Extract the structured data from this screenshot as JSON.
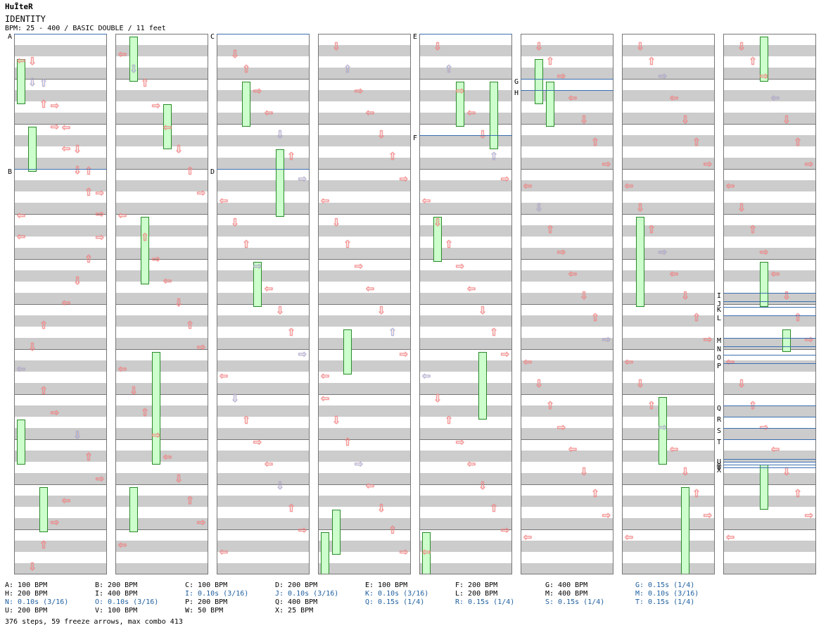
{
  "header": {
    "logo": "HuĨteR",
    "song_title": "IDENTITY",
    "chart_info": "BPM: 25 - 400 / BASIC DOUBLE / 11 feet"
  },
  "colors": {
    "tap_red": "#ff9999",
    "tap_blue": "#99ccff",
    "freeze_fill": "#ccffcc",
    "freeze_arrow_green": "#33cc33",
    "freeze_arrow_yellow": "#ffff66",
    "bpm_line": "#3b6fb0"
  },
  "icons": [
    "left-arrow-icon",
    "down-arrow-icon",
    "up-arrow-icon",
    "right-arrow-icon",
    "freeze-arrow-icon"
  ],
  "columns": [
    {
      "markers": [
        {
          "label": "A"
        },
        {
          "label": "B"
        }
      ],
      "notes": [
        [
          1,
          12,
          "red"
        ],
        [
          2,
          24,
          "blue"
        ],
        [
          3,
          36,
          "red"
        ],
        [
          4,
          48,
          "red"
        ],
        [
          5,
          60,
          "red"
        ],
        [
          6,
          72,
          "red"
        ],
        [
          7,
          84,
          "red"
        ],
        [
          8,
          96,
          "red"
        ],
        [
          7,
          108,
          "red"
        ],
        [
          6,
          120,
          "red"
        ],
        [
          5,
          132,
          "red"
        ],
        [
          4,
          144,
          "red"
        ],
        [
          2,
          156,
          "red"
        ],
        [
          1,
          168,
          "red"
        ],
        [
          0,
          180,
          "blue"
        ],
        [
          2,
          192,
          "red"
        ],
        [
          3,
          204,
          "red"
        ],
        [
          5,
          216,
          "blue"
        ],
        [
          6,
          228,
          "red"
        ],
        [
          7,
          240,
          "red"
        ],
        [
          4,
          252,
          "red"
        ],
        [
          3,
          264,
          "red"
        ],
        [
          2,
          276,
          "red"
        ],
        [
          1,
          288,
          "red"
        ],
        [
          0,
          300,
          "red"
        ],
        [
          1,
          312,
          "blue"
        ],
        [
          2,
          324,
          "red"
        ],
        [
          3,
          336,
          "red"
        ],
        [
          4,
          348,
          "red"
        ],
        [
          5,
          360,
          "red"
        ],
        [
          6,
          372,
          "red"
        ],
        [
          7,
          384,
          "red"
        ],
        [
          8,
          396,
          "red"
        ]
      ],
      "freezes": [
        [
          0,
          1,
          3
        ],
        [
          0,
          17,
          19
        ],
        [
          1,
          4,
          6
        ],
        [
          2,
          20,
          22
        ]
      ]
    },
    {
      "markers": [],
      "notes": [
        [
          0,
          8,
          "red"
        ],
        [
          1,
          16,
          "blue"
        ],
        [
          2,
          24,
          "red"
        ],
        [
          3,
          36,
          "red"
        ],
        [
          4,
          48,
          "red"
        ],
        [
          5,
          60,
          "red"
        ],
        [
          6,
          72,
          "red"
        ],
        [
          7,
          84,
          "red"
        ],
        [
          0,
          96,
          "red"
        ],
        [
          2,
          108,
          "red"
        ],
        [
          3,
          120,
          "red"
        ],
        [
          4,
          132,
          "red"
        ],
        [
          5,
          144,
          "red"
        ],
        [
          6,
          156,
          "red"
        ],
        [
          7,
          168,
          "red"
        ],
        [
          0,
          180,
          "red"
        ],
        [
          1,
          192,
          "red"
        ],
        [
          2,
          204,
          "red"
        ],
        [
          3,
          216,
          "red"
        ],
        [
          4,
          228,
          "red"
        ],
        [
          5,
          240,
          "red"
        ],
        [
          6,
          252,
          "red"
        ],
        [
          7,
          264,
          "red"
        ],
        [
          8,
          276,
          "red"
        ]
      ],
      "freezes": [
        [
          1,
          0,
          2
        ],
        [
          2,
          8,
          11
        ],
        [
          3,
          14,
          19
        ],
        [
          4,
          3,
          5
        ],
        [
          1,
          20,
          22
        ]
      ]
    },
    {
      "markers": [
        {
          "label": "C"
        },
        {
          "label": "D"
        }
      ],
      "notes": [
        [
          1,
          8,
          "red"
        ],
        [
          2,
          16,
          "red"
        ],
        [
          3,
          28,
          "red"
        ],
        [
          4,
          40,
          "red"
        ],
        [
          5,
          52,
          "blue"
        ],
        [
          6,
          64,
          "red"
        ],
        [
          7,
          76,
          "blue"
        ],
        [
          0,
          88,
          "red"
        ],
        [
          1,
          100,
          "red"
        ],
        [
          2,
          112,
          "red"
        ],
        [
          3,
          124,
          "blue"
        ],
        [
          4,
          136,
          "red"
        ],
        [
          5,
          148,
          "red"
        ],
        [
          6,
          160,
          "red"
        ],
        [
          7,
          172,
          "blue"
        ],
        [
          0,
          184,
          "red"
        ],
        [
          1,
          196,
          "blue"
        ],
        [
          2,
          208,
          "red"
        ],
        [
          3,
          220,
          "red"
        ],
        [
          4,
          232,
          "red"
        ],
        [
          5,
          244,
          "blue"
        ],
        [
          6,
          256,
          "red"
        ],
        [
          7,
          268,
          "red"
        ],
        [
          8,
          280,
          "red"
        ]
      ],
      "freezes": [
        [
          2,
          2,
          4
        ],
        [
          5,
          5,
          8
        ],
        [
          3,
          10,
          12
        ]
      ]
    },
    {
      "markers": [],
      "notes": [
        [
          1,
          4,
          "red"
        ],
        [
          2,
          16,
          "blue"
        ],
        [
          3,
          28,
          "red"
        ],
        [
          4,
          40,
          "red"
        ],
        [
          5,
          52,
          "red"
        ],
        [
          6,
          64,
          "red"
        ],
        [
          7,
          76,
          "red"
        ],
        [
          0,
          88,
          "red"
        ],
        [
          1,
          100,
          "red"
        ],
        [
          2,
          112,
          "red"
        ],
        [
          3,
          124,
          "red"
        ],
        [
          4,
          136,
          "red"
        ],
        [
          5,
          148,
          "red"
        ],
        [
          6,
          160,
          "blue"
        ],
        [
          7,
          172,
          "red"
        ],
        [
          8,
          184,
          "red"
        ],
        [
          0,
          196,
          "red"
        ],
        [
          1,
          208,
          "red"
        ],
        [
          2,
          220,
          "red"
        ],
        [
          3,
          232,
          "blue"
        ],
        [
          4,
          244,
          "red"
        ],
        [
          5,
          256,
          "red"
        ],
        [
          6,
          268,
          "red"
        ],
        [
          7,
          280,
          "red"
        ]
      ],
      "freezes": [
        [
          2,
          13,
          15
        ],
        [
          1,
          21,
          23
        ],
        [
          0,
          22,
          24
        ]
      ]
    },
    {
      "markers": [
        {
          "label": "E"
        },
        {
          "label": "F"
        }
      ],
      "notes": [
        [
          1,
          4,
          "red"
        ],
        [
          2,
          16,
          "blue"
        ],
        [
          3,
          28,
          "red"
        ],
        [
          4,
          40,
          "red"
        ],
        [
          5,
          52,
          "red"
        ],
        [
          6,
          64,
          "blue"
        ],
        [
          7,
          76,
          "red"
        ],
        [
          0,
          88,
          "red"
        ],
        [
          1,
          100,
          "red"
        ],
        [
          2,
          112,
          "red"
        ],
        [
          3,
          124,
          "red"
        ],
        [
          4,
          136,
          "red"
        ],
        [
          5,
          148,
          "red"
        ],
        [
          6,
          160,
          "red"
        ],
        [
          7,
          172,
          "red"
        ],
        [
          0,
          184,
          "blue"
        ],
        [
          1,
          196,
          "red"
        ],
        [
          2,
          208,
          "red"
        ],
        [
          3,
          220,
          "red"
        ],
        [
          4,
          232,
          "red"
        ],
        [
          5,
          244,
          "red"
        ],
        [
          6,
          256,
          "red"
        ],
        [
          7,
          268,
          "red"
        ],
        [
          8,
          280,
          "red"
        ]
      ],
      "freezes": [
        [
          3,
          2,
          4
        ],
        [
          6,
          2,
          5
        ],
        [
          1,
          8,
          10
        ],
        [
          5,
          14,
          17
        ],
        [
          0,
          22,
          24
        ]
      ]
    },
    {
      "markers": [
        {
          "label": "G"
        },
        {
          "label": "H"
        }
      ],
      "notes": [
        [
          1,
          4,
          "red"
        ],
        [
          2,
          12,
          "red"
        ],
        [
          3,
          20,
          "red"
        ],
        [
          4,
          32,
          "red"
        ],
        [
          5,
          44,
          "red"
        ],
        [
          6,
          56,
          "red"
        ],
        [
          7,
          68,
          "red"
        ],
        [
          0,
          80,
          "red"
        ],
        [
          1,
          92,
          "blue"
        ],
        [
          2,
          104,
          "red"
        ],
        [
          3,
          116,
          "red"
        ],
        [
          4,
          128,
          "red"
        ],
        [
          5,
          140,
          "red"
        ],
        [
          6,
          152,
          "red"
        ],
        [
          7,
          164,
          "blue"
        ],
        [
          0,
          176,
          "red"
        ],
        [
          1,
          188,
          "red"
        ],
        [
          2,
          200,
          "red"
        ],
        [
          3,
          212,
          "red"
        ],
        [
          4,
          224,
          "red"
        ],
        [
          5,
          236,
          "red"
        ],
        [
          6,
          248,
          "red"
        ],
        [
          7,
          260,
          "red"
        ],
        [
          8,
          272,
          "red"
        ]
      ],
      "freezes": [
        [
          1,
          1,
          3
        ],
        [
          2,
          2,
          4
        ]
      ]
    },
    {
      "markers": [],
      "notes": [
        [
          1,
          4,
          "red"
        ],
        [
          2,
          12,
          "red"
        ],
        [
          3,
          20,
          "blue"
        ],
        [
          4,
          32,
          "red"
        ],
        [
          5,
          44,
          "red"
        ],
        [
          6,
          56,
          "red"
        ],
        [
          7,
          68,
          "red"
        ],
        [
          0,
          80,
          "red"
        ],
        [
          1,
          92,
          "red"
        ],
        [
          2,
          104,
          "red"
        ],
        [
          3,
          116,
          "blue"
        ],
        [
          4,
          128,
          "red"
        ],
        [
          5,
          140,
          "red"
        ],
        [
          6,
          152,
          "red"
        ],
        [
          7,
          164,
          "red"
        ],
        [
          0,
          176,
          "red"
        ],
        [
          1,
          188,
          "red"
        ],
        [
          2,
          200,
          "red"
        ],
        [
          3,
          212,
          "blue"
        ],
        [
          4,
          224,
          "red"
        ],
        [
          5,
          236,
          "red"
        ],
        [
          6,
          248,
          "red"
        ],
        [
          7,
          260,
          "red"
        ],
        [
          8,
          272,
          "red"
        ]
      ],
      "freezes": [
        [
          1,
          8,
          12
        ],
        [
          3,
          16,
          19
        ],
        [
          5,
          20,
          24
        ]
      ]
    },
    {
      "markers": [
        {
          "label": "I"
        },
        {
          "label": "J"
        },
        {
          "label": "K"
        },
        {
          "label": "L"
        },
        {
          "label": "M"
        },
        {
          "label": "N"
        },
        {
          "label": "O"
        },
        {
          "label": "P"
        },
        {
          "label": "Q"
        },
        {
          "label": "R"
        },
        {
          "label": "S"
        },
        {
          "label": "T"
        },
        {
          "label": "U"
        },
        {
          "label": "V"
        },
        {
          "label": "W"
        },
        {
          "label": "X"
        }
      ],
      "notes": [
        [
          1,
          4,
          "red"
        ],
        [
          2,
          12,
          "red"
        ],
        [
          3,
          20,
          "red"
        ],
        [
          4,
          32,
          "blue"
        ],
        [
          5,
          44,
          "red"
        ],
        [
          6,
          56,
          "red"
        ],
        [
          7,
          68,
          "red"
        ],
        [
          0,
          80,
          "red"
        ],
        [
          1,
          92,
          "red"
        ],
        [
          2,
          104,
          "red"
        ],
        [
          3,
          116,
          "red"
        ],
        [
          4,
          128,
          "red"
        ],
        [
          5,
          140,
          "red"
        ],
        [
          6,
          152,
          "red"
        ],
        [
          7,
          164,
          "red"
        ],
        [
          0,
          176,
          "red"
        ],
        [
          1,
          188,
          "red"
        ],
        [
          2,
          200,
          "red"
        ],
        [
          3,
          212,
          "red"
        ],
        [
          4,
          224,
          "red"
        ],
        [
          5,
          236,
          "red"
        ],
        [
          6,
          248,
          "red"
        ],
        [
          7,
          260,
          "red"
        ],
        [
          8,
          272,
          "red"
        ]
      ],
      "freezes": [
        [
          3,
          0,
          2
        ],
        [
          3,
          10,
          12
        ],
        [
          5,
          13,
          14
        ],
        [
          3,
          19,
          21
        ]
      ]
    }
  ],
  "legend": [
    [
      "A: 100 BPM",
      "B: 200 BPM",
      "C: 100 BPM",
      "D: 200 BPM",
      "E: 100 BPM",
      "F: 200 BPM",
      "G: 400 BPM",
      "G: 0.15s (1/4)"
    ],
    [
      "H: 200 BPM",
      "I: 400 BPM",
      "I: 0.10s (3/16)",
      "J: 0.10s (3/16)",
      "K: 0.10s (3/16)",
      "L: 200 BPM",
      "M: 400 BPM",
      "M: 0.10s (3/16)"
    ],
    [
      "N: 0.10s (3/16)",
      "O: 0.10s (3/16)",
      "P: 200 BPM",
      "Q: 400 BPM",
      "Q: 0.15s (1/4)",
      "R: 0.15s (1/4)",
      "S: 0.15s (1/4)",
      "T: 0.15s (1/4)"
    ],
    [
      "U: 200 BPM",
      "V: 100 BPM",
      "W: 50 BPM",
      "X: 25 BPM"
    ]
  ],
  "stats": "376 steps, 59 freeze arrows, max combo 413"
}
